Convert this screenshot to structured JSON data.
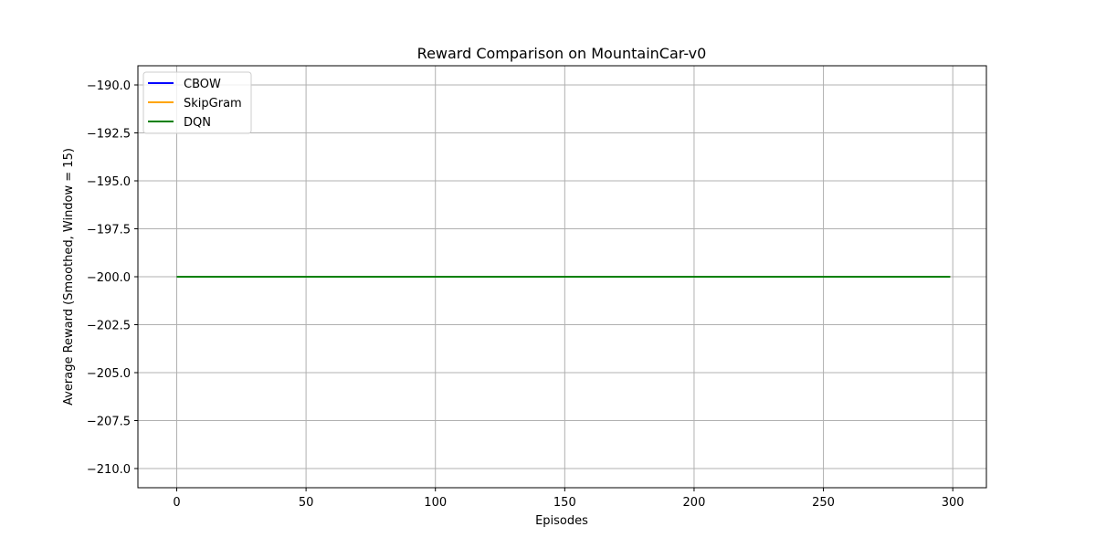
{
  "chart_data": {
    "type": "line",
    "title": "Reward Comparison on MountainCar-v0",
    "xlabel": "Episodes",
    "ylabel": "Average Reward (Smoothed, Window = 15)",
    "xlim": [
      -15,
      313
    ],
    "ylim": [
      -211,
      -189
    ],
    "xticks": [
      0,
      50,
      100,
      150,
      200,
      250,
      300
    ],
    "yticks": [
      -190.0,
      -192.5,
      -195.0,
      -197.5,
      -200.0,
      -202.5,
      -205.0,
      -207.5,
      -210.0
    ],
    "xtick_labels": [
      "0",
      "50",
      "100",
      "150",
      "200",
      "250",
      "300"
    ],
    "ytick_labels": [
      "−190.0",
      "−192.5",
      "−195.0",
      "−197.5",
      "−200.0",
      "−202.5",
      "−205.0",
      "−207.5",
      "−210.0"
    ],
    "grid": true,
    "legend_position": "top-left",
    "series": [
      {
        "name": "CBOW",
        "color": "#0000ff",
        "x": [
          0,
          299
        ],
        "y": [
          -200.0,
          -200.0
        ]
      },
      {
        "name": "SkipGram",
        "color": "#ffa500",
        "x": [
          0,
          299
        ],
        "y": [
          -200.0,
          -200.0
        ]
      },
      {
        "name": "DQN",
        "color": "#008000",
        "x": [
          0,
          299
        ],
        "y": [
          -200.0,
          -200.0
        ]
      }
    ]
  }
}
